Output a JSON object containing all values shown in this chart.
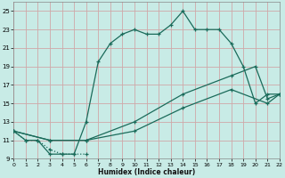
{
  "xlabel": "Humidex (Indice chaleur)",
  "bg_color": "#c8ebe6",
  "grid_color": "#d4b8b8",
  "line_color": "#1a6b5a",
  "xlim": [
    0,
    22
  ],
  "ylim": [
    9,
    26
  ],
  "yticks": [
    9,
    11,
    13,
    15,
    17,
    19,
    21,
    23,
    25
  ],
  "xticks": [
    0,
    1,
    2,
    3,
    4,
    5,
    6,
    7,
    8,
    9,
    10,
    11,
    12,
    13,
    14,
    15,
    16,
    17,
    18,
    19,
    20,
    21,
    22
  ],
  "curve_main_x": [
    0,
    1,
    2,
    3,
    4,
    5,
    6,
    7,
    8,
    9,
    10,
    11,
    12,
    13,
    14,
    15,
    16,
    17,
    18,
    19,
    20,
    21,
    22
  ],
  "curve_main_y": [
    12,
    11,
    11,
    9.5,
    9.5,
    9.5,
    13,
    19.5,
    21.5,
    22.5,
    23,
    22.5,
    22.5,
    23.5,
    25,
    23,
    23,
    23,
    21.5,
    19,
    15,
    16,
    16
  ],
  "curve_dip_x": [
    0,
    1,
    2,
    3,
    4,
    5,
    6
  ],
  "curve_dip_y": [
    12,
    11,
    11,
    10,
    9.5,
    9.5,
    9.5
  ],
  "curve_slow1_x": [
    0,
    3,
    6,
    10,
    14,
    18,
    20,
    21,
    22
  ],
  "curve_slow1_y": [
    12,
    11,
    11,
    13,
    16,
    18,
    19,
    15.5,
    16
  ],
  "curve_slow2_x": [
    0,
    3,
    6,
    10,
    14,
    18,
    21,
    22
  ],
  "curve_slow2_y": [
    12,
    11,
    11,
    12,
    14.5,
    16.5,
    15,
    16
  ]
}
